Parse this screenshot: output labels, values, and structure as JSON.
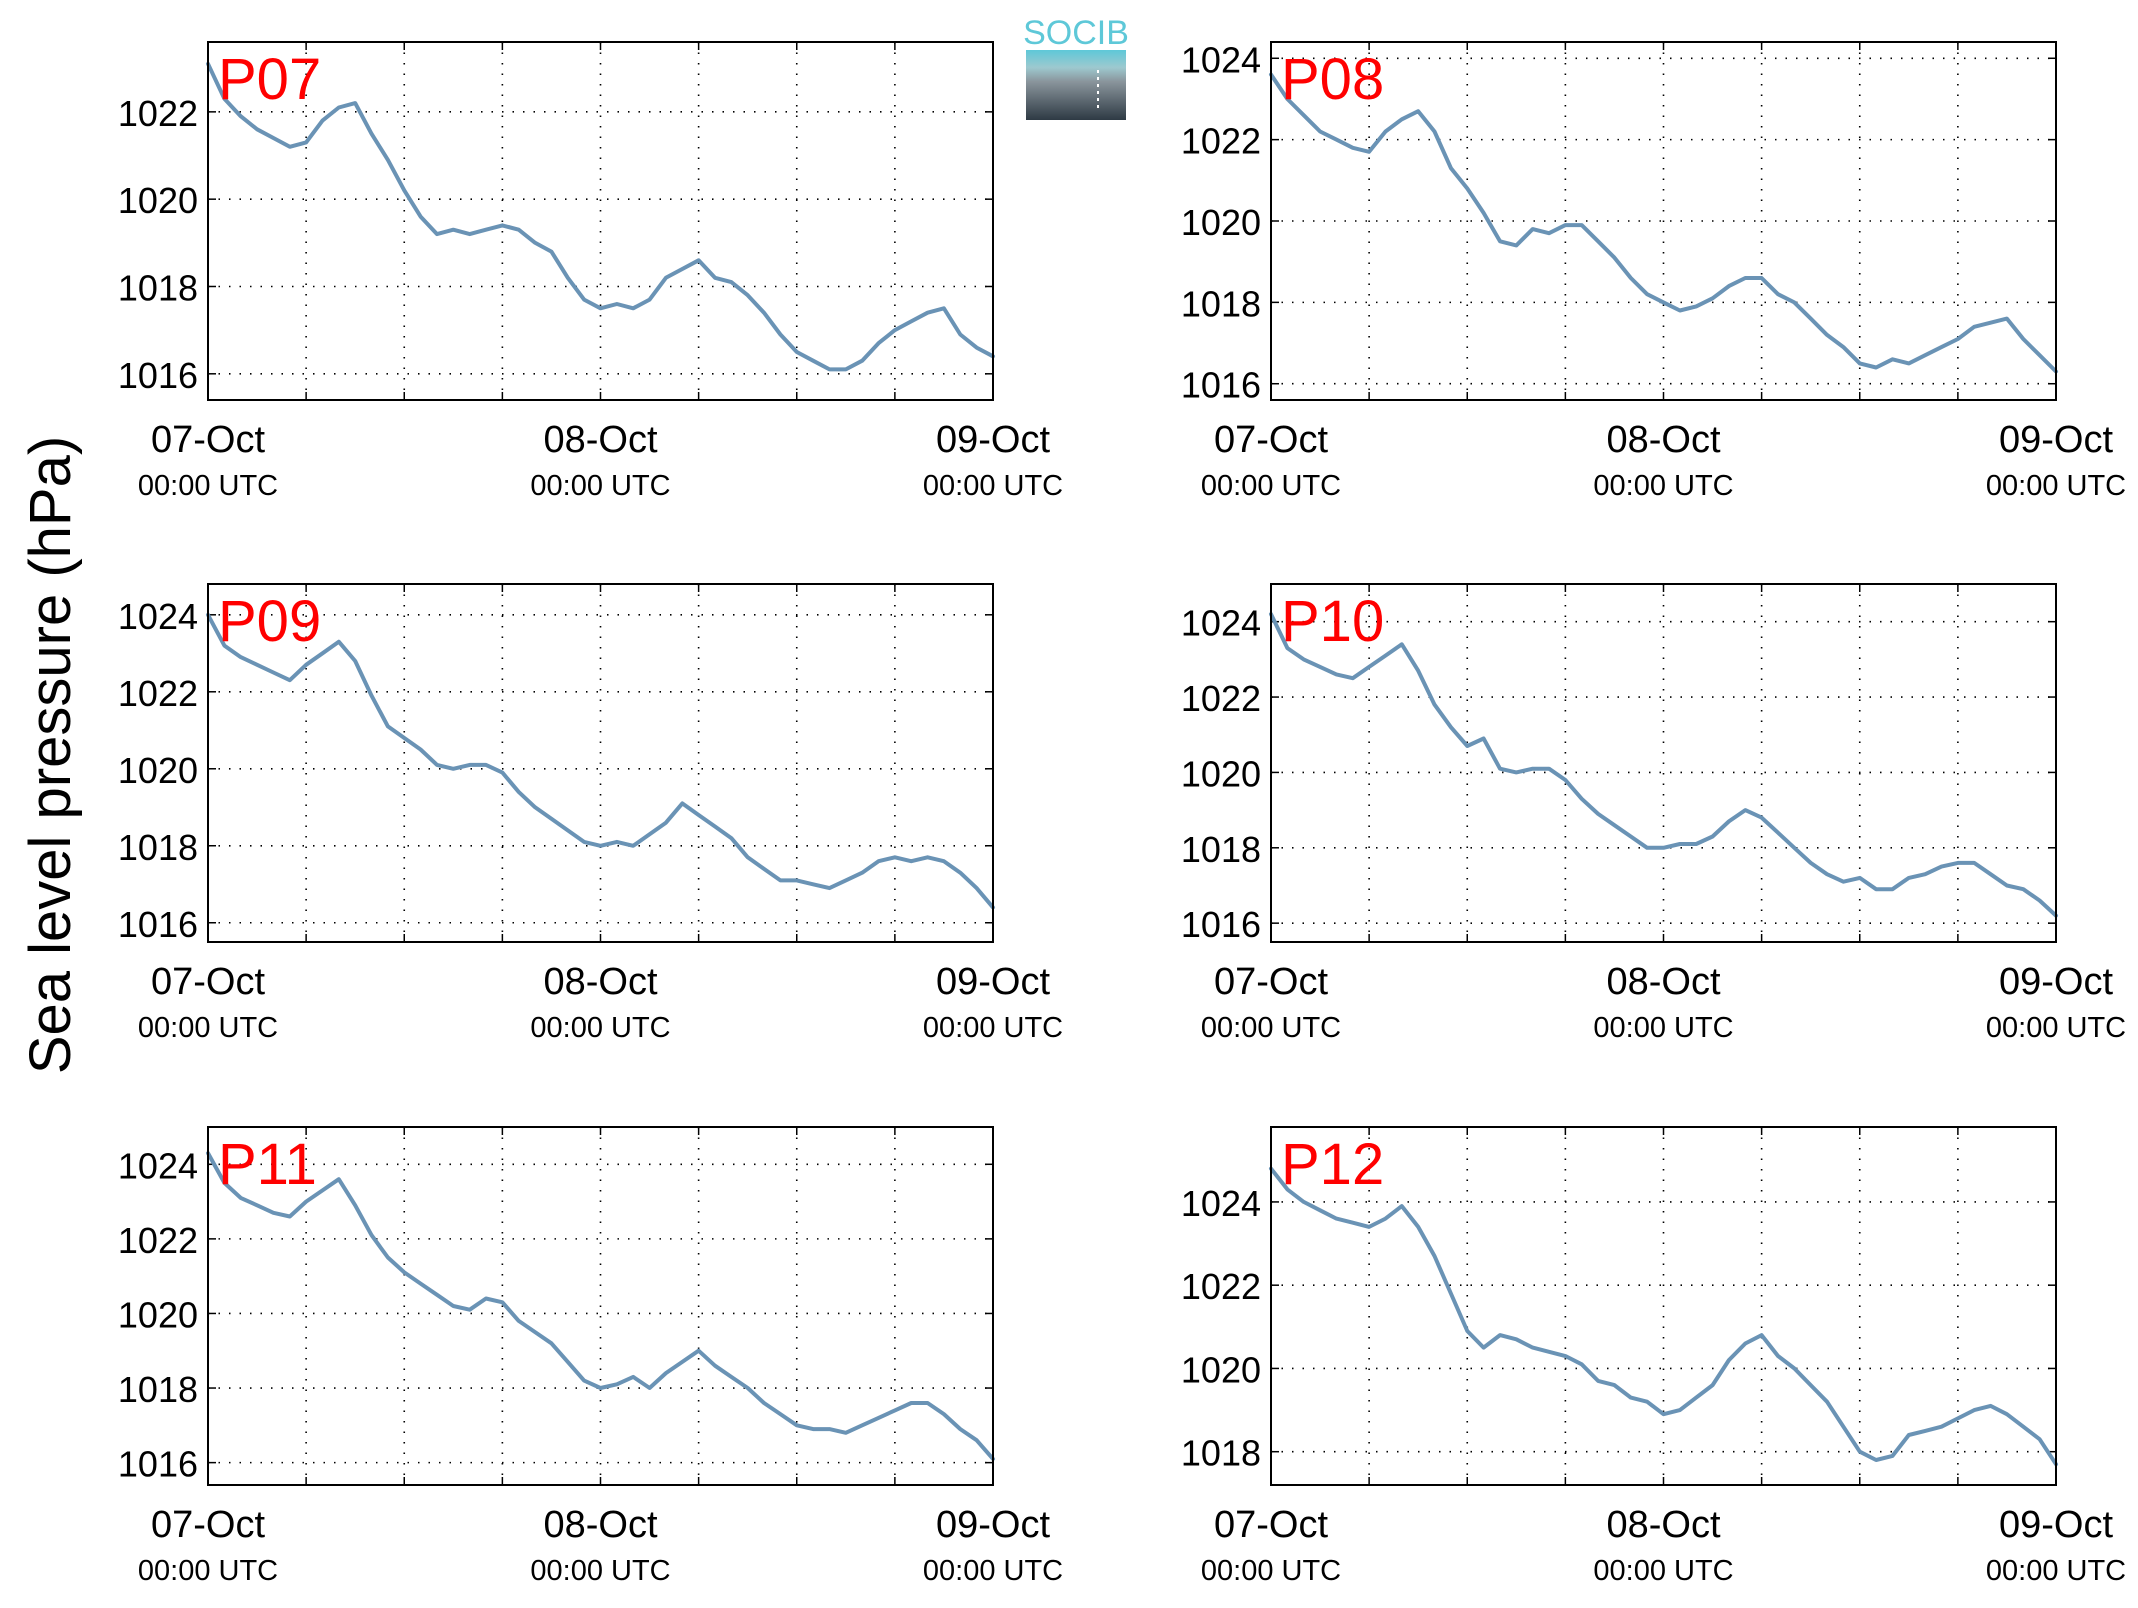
{
  "figure": {
    "ylabel": "Sea level pressure (hPa)",
    "logo_text": "SOCIB",
    "line_color": "#6a93b5",
    "label_color": "#ff0000"
  },
  "x_ticks": [
    {
      "date": "07-Oct",
      "time": "00:00 UTC"
    },
    {
      "date": "08-Oct",
      "time": "00:00 UTC"
    },
    {
      "date": "09-Oct",
      "time": "00:00 UTC"
    }
  ],
  "chart_data": [
    {
      "type": "line",
      "title": "P07",
      "xlabel": "",
      "ylabel": "Sea level pressure (hPa)",
      "x_unit": "hours since 07-Oct 00:00 UTC",
      "xlim": [
        0,
        48
      ],
      "ylim": [
        1015.4,
        1023.6
      ],
      "yticks": [
        1016,
        1018,
        1020,
        1022
      ],
      "grid": true,
      "series": [
        {
          "x": [
            0,
            1,
            2,
            3,
            4,
            5,
            6,
            7,
            8,
            9,
            10,
            11,
            12,
            13,
            14,
            15,
            16,
            17,
            18,
            19,
            20,
            21,
            22,
            23,
            24,
            25,
            26,
            27,
            28,
            29,
            30,
            31,
            32,
            33,
            34,
            35,
            36,
            37,
            38,
            39,
            40,
            41,
            42,
            43,
            44,
            45,
            46,
            47,
            48
          ],
          "values": [
            1023.1,
            1022.3,
            1021.9,
            1021.6,
            1021.4,
            1021.2,
            1021.3,
            1021.8,
            1022.1,
            1022.2,
            1021.5,
            1020.9,
            1020.2,
            1019.6,
            1019.2,
            1019.3,
            1019.2,
            1019.3,
            1019.4,
            1019.3,
            1019.0,
            1018.8,
            1018.2,
            1017.7,
            1017.5,
            1017.6,
            1017.5,
            1017.7,
            1018.2,
            1018.4,
            1018.6,
            1018.2,
            1018.1,
            1017.8,
            1017.4,
            1016.9,
            1016.5,
            1016.3,
            1016.1,
            1016.1,
            1016.3,
            1016.7,
            1017.0,
            1017.2,
            1017.4,
            1017.5,
            1016.9,
            1016.6,
            1016.4
          ]
        }
      ]
    },
    {
      "type": "line",
      "title": "P08",
      "xlabel": "",
      "ylabel": "Sea level pressure (hPa)",
      "x_unit": "hours since 07-Oct 00:00 UTC",
      "xlim": [
        0,
        48
      ],
      "ylim": [
        1015.6,
        1024.4
      ],
      "yticks": [
        1016,
        1018,
        1020,
        1022,
        1024
      ],
      "grid": true,
      "series": [
        {
          "x": [
            0,
            1,
            2,
            3,
            4,
            5,
            6,
            7,
            8,
            9,
            10,
            11,
            12,
            13,
            14,
            15,
            16,
            17,
            18,
            19,
            20,
            21,
            22,
            23,
            24,
            25,
            26,
            27,
            28,
            29,
            30,
            31,
            32,
            33,
            34,
            35,
            36,
            37,
            38,
            39,
            40,
            41,
            42,
            43,
            44,
            45,
            46,
            47,
            48
          ],
          "values": [
            1023.6,
            1023.0,
            1022.6,
            1022.2,
            1022.0,
            1021.8,
            1021.7,
            1022.2,
            1022.5,
            1022.7,
            1022.2,
            1021.3,
            1020.8,
            1020.2,
            1019.5,
            1019.4,
            1019.8,
            1019.7,
            1019.9,
            1019.9,
            1019.5,
            1019.1,
            1018.6,
            1018.2,
            1018.0,
            1017.8,
            1017.9,
            1018.1,
            1018.4,
            1018.6,
            1018.6,
            1018.2,
            1018.0,
            1017.6,
            1017.2,
            1016.9,
            1016.5,
            1016.4,
            1016.6,
            1016.5,
            1016.7,
            1016.9,
            1017.1,
            1017.4,
            1017.5,
            1017.6,
            1017.1,
            1016.7,
            1016.3
          ]
        }
      ]
    },
    {
      "type": "line",
      "title": "P09",
      "xlabel": "",
      "ylabel": "Sea level pressure (hPa)",
      "x_unit": "hours since 07-Oct 00:00 UTC",
      "xlim": [
        0,
        48
      ],
      "ylim": [
        1015.5,
        1024.8
      ],
      "yticks": [
        1016,
        1018,
        1020,
        1022,
        1024
      ],
      "grid": true,
      "series": [
        {
          "x": [
            0,
            1,
            2,
            3,
            4,
            5,
            6,
            7,
            8,
            9,
            10,
            11,
            12,
            13,
            14,
            15,
            16,
            17,
            18,
            19,
            20,
            21,
            22,
            23,
            24,
            25,
            26,
            27,
            28,
            29,
            30,
            31,
            32,
            33,
            34,
            35,
            36,
            37,
            38,
            39,
            40,
            41,
            42,
            43,
            44,
            45,
            46,
            47,
            48
          ],
          "values": [
            1024.0,
            1023.2,
            1022.9,
            1022.7,
            1022.5,
            1022.3,
            1022.7,
            1023.0,
            1023.3,
            1022.8,
            1021.9,
            1021.1,
            1020.8,
            1020.5,
            1020.1,
            1020.0,
            1020.1,
            1020.1,
            1019.9,
            1019.4,
            1019.0,
            1018.7,
            1018.4,
            1018.1,
            1018.0,
            1018.1,
            1018.0,
            1018.3,
            1018.6,
            1019.1,
            1018.8,
            1018.5,
            1018.2,
            1017.7,
            1017.4,
            1017.1,
            1017.1,
            1017.0,
            1016.9,
            1017.1,
            1017.3,
            1017.6,
            1017.7,
            1017.6,
            1017.7,
            1017.6,
            1017.3,
            1016.9,
            1016.4
          ]
        }
      ]
    },
    {
      "type": "line",
      "title": "P10",
      "xlabel": "",
      "ylabel": "Sea level pressure (hPa)",
      "x_unit": "hours since 07-Oct 00:00 UTC",
      "xlim": [
        0,
        48
      ],
      "ylim": [
        1015.5,
        1025.0
      ],
      "yticks": [
        1016,
        1018,
        1020,
        1022,
        1024
      ],
      "grid": true,
      "series": [
        {
          "x": [
            0,
            1,
            2,
            3,
            4,
            5,
            6,
            7,
            8,
            9,
            10,
            11,
            12,
            13,
            14,
            15,
            16,
            17,
            18,
            19,
            20,
            21,
            22,
            23,
            24,
            25,
            26,
            27,
            28,
            29,
            30,
            31,
            32,
            33,
            34,
            35,
            36,
            37,
            38,
            39,
            40,
            41,
            42,
            43,
            44,
            45,
            46,
            47,
            48
          ],
          "values": [
            1024.2,
            1023.3,
            1023.0,
            1022.8,
            1022.6,
            1022.5,
            1022.8,
            1023.1,
            1023.4,
            1022.7,
            1021.8,
            1021.2,
            1020.7,
            1020.9,
            1020.1,
            1020.0,
            1020.1,
            1020.1,
            1019.8,
            1019.3,
            1018.9,
            1018.6,
            1018.3,
            1018.0,
            1018.0,
            1018.1,
            1018.1,
            1018.3,
            1018.7,
            1019.0,
            1018.8,
            1018.4,
            1018.0,
            1017.6,
            1017.3,
            1017.1,
            1017.2,
            1016.9,
            1016.9,
            1017.2,
            1017.3,
            1017.5,
            1017.6,
            1017.6,
            1017.3,
            1017.0,
            1016.9,
            1016.6,
            1016.2
          ]
        }
      ]
    },
    {
      "type": "line",
      "title": "P11",
      "xlabel": "",
      "ylabel": "Sea level pressure (hPa)",
      "x_unit": "hours since 07-Oct 00:00 UTC",
      "xlim": [
        0,
        48
      ],
      "ylim": [
        1015.4,
        1025.0
      ],
      "yticks": [
        1016,
        1018,
        1020,
        1022,
        1024
      ],
      "grid": true,
      "series": [
        {
          "x": [
            0,
            1,
            2,
            3,
            4,
            5,
            6,
            7,
            8,
            9,
            10,
            11,
            12,
            13,
            14,
            15,
            16,
            17,
            18,
            19,
            20,
            21,
            22,
            23,
            24,
            25,
            26,
            27,
            28,
            29,
            30,
            31,
            32,
            33,
            34,
            35,
            36,
            37,
            38,
            39,
            40,
            41,
            42,
            43,
            44,
            45,
            46,
            47,
            48
          ],
          "values": [
            1024.3,
            1023.5,
            1023.1,
            1022.9,
            1022.7,
            1022.6,
            1023.0,
            1023.3,
            1023.6,
            1022.9,
            1022.1,
            1021.5,
            1021.1,
            1020.8,
            1020.5,
            1020.2,
            1020.1,
            1020.4,
            1020.3,
            1019.8,
            1019.5,
            1019.2,
            1018.7,
            1018.2,
            1018.0,
            1018.1,
            1018.3,
            1018.0,
            1018.4,
            1018.7,
            1019.0,
            1018.6,
            1018.3,
            1018.0,
            1017.6,
            1017.3,
            1017.0,
            1016.9,
            1016.9,
            1016.8,
            1017.0,
            1017.2,
            1017.4,
            1017.6,
            1017.6,
            1017.3,
            1016.9,
            1016.6,
            1016.1
          ]
        }
      ]
    },
    {
      "type": "line",
      "title": "P12",
      "xlabel": "",
      "ylabel": "Sea level pressure (hPa)",
      "x_unit": "hours since 07-Oct 00:00 UTC",
      "xlim": [
        0,
        48
      ],
      "ylim": [
        1017.2,
        1025.8
      ],
      "yticks": [
        1018,
        1020,
        1022,
        1024
      ],
      "grid": true,
      "series": [
        {
          "x": [
            0,
            1,
            2,
            3,
            4,
            5,
            6,
            7,
            8,
            9,
            10,
            11,
            12,
            13,
            14,
            15,
            16,
            17,
            18,
            19,
            20,
            21,
            22,
            23,
            24,
            25,
            26,
            27,
            28,
            29,
            30,
            31,
            32,
            33,
            34,
            35,
            36,
            37,
            38,
            39,
            40,
            41,
            42,
            43,
            44,
            45,
            46,
            47,
            48
          ],
          "values": [
            1024.8,
            1024.3,
            1024.0,
            1023.8,
            1023.6,
            1023.5,
            1023.4,
            1023.6,
            1023.9,
            1023.4,
            1022.7,
            1021.8,
            1020.9,
            1020.5,
            1020.8,
            1020.7,
            1020.5,
            1020.4,
            1020.3,
            1020.1,
            1019.7,
            1019.6,
            1019.3,
            1019.2,
            1018.9,
            1019.0,
            1019.3,
            1019.6,
            1020.2,
            1020.6,
            1020.8,
            1020.3,
            1020.0,
            1019.6,
            1019.2,
            1018.6,
            1018.0,
            1017.8,
            1017.9,
            1018.4,
            1018.5,
            1018.6,
            1018.8,
            1019.0,
            1019.1,
            1018.9,
            1018.6,
            1018.3,
            1017.7
          ]
        }
      ]
    }
  ]
}
